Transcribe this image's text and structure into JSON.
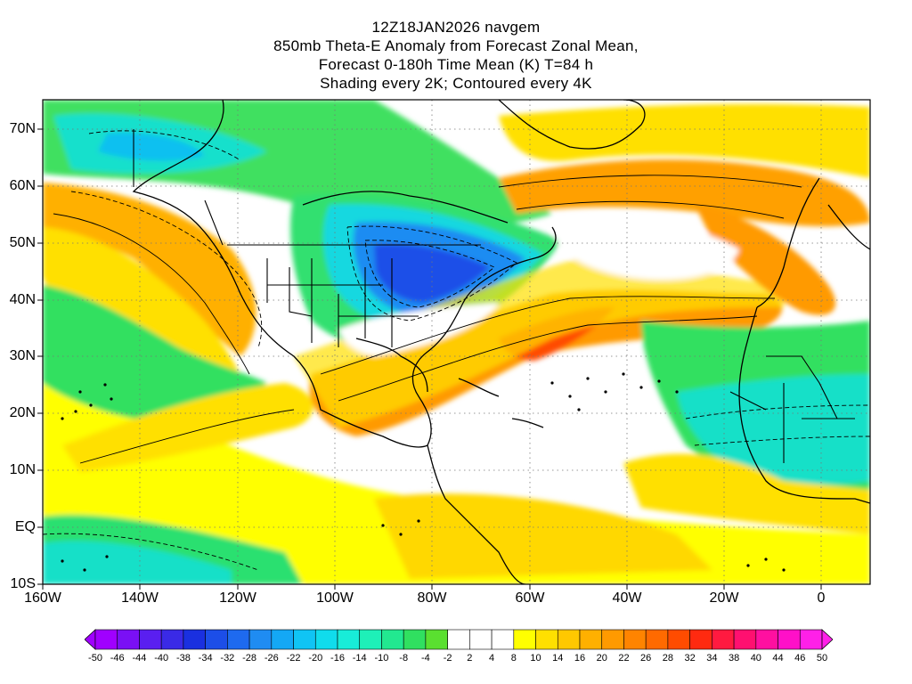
{
  "header": {
    "line1": "12Z18JAN2026 navgem",
    "line2": "850mb Theta-E Anomaly from Forecast Zonal Mean,",
    "line3": "Forecast 0-180h Time Mean (K) T=84 h",
    "line4": "Shading every 2K; Contoured every 4K"
  },
  "map": {
    "projection": "cylindrical equidistant",
    "lon_range": [
      -160,
      10
    ],
    "lat_range": [
      -10,
      75
    ],
    "lat_ticks": [
      "70N",
      "60N",
      "50N",
      "40N",
      "30N",
      "20N",
      "10N",
      "EQ",
      "10S"
    ],
    "lon_ticks": [
      "160W",
      "140W",
      "120W",
      "100W",
      "80W",
      "60W",
      "40W",
      "20W",
      "0"
    ],
    "grid": "dotted at 10 degree intervals",
    "features": [
      {
        "name": "cold anomaly over eastern North America",
        "sign": "negative"
      },
      {
        "name": "cold anomaly over northern Africa",
        "sign": "negative"
      },
      {
        "name": "warm band across subtropical Atlantic",
        "sign": "positive"
      },
      {
        "name": "warm anomaly over Greenland and North Atlantic",
        "sign": "positive"
      },
      {
        "name": "warm anomaly over Gulf of Alaska",
        "sign": "positive"
      }
    ]
  },
  "colorbar": {
    "labels": [
      "-50",
      "-46",
      "-44",
      "-40",
      "-38",
      "-34",
      "-32",
      "-28",
      "-26",
      "-22",
      "-20",
      "-16",
      "-14",
      "-10",
      "-8",
      "-4",
      "-2",
      "2",
      "4",
      "8",
      "10",
      "14",
      "16",
      "20",
      "22",
      "26",
      "28",
      "32",
      "34",
      "38",
      "40",
      "44",
      "46",
      "50"
    ],
    "colors": [
      "#a000ff",
      "#7a10f5",
      "#5a1ff0",
      "#3a2ae6",
      "#1a30e0",
      "#1c4ee8",
      "#1e6aef",
      "#1f8cf2",
      "#14a8f5",
      "#10c4f4",
      "#10dcec",
      "#18ecd8",
      "#1ef0b8",
      "#22e890",
      "#30e060",
      "#5ae030",
      "#ffffff",
      "#ffffff",
      "#ffffff",
      "#ffff00",
      "#ffe000",
      "#ffc800",
      "#ffb000",
      "#ff9a00",
      "#ff8400",
      "#ff6a00",
      "#ff4c00",
      "#ff2a10",
      "#ff1a40",
      "#ff1070",
      "#ff10a0",
      "#ff10c8",
      "#ff20e8"
    ]
  }
}
